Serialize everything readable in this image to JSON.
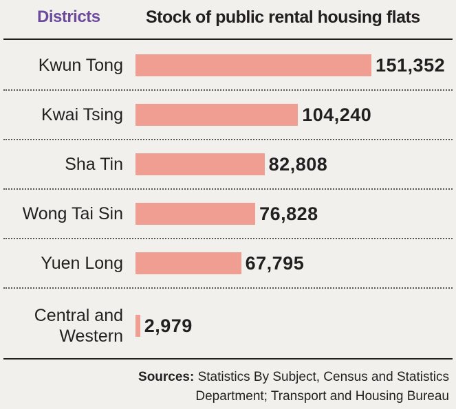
{
  "header": {
    "districts_label": "Districts",
    "stock_label": "Stock of public rental housing flats"
  },
  "chart_data": {
    "type": "bar",
    "orientation": "horizontal",
    "categories": [
      "Kwun Tong",
      "Kwai Tsing",
      "Sha Tin",
      "Wong Tai Sin",
      "Yuen Long",
      "Central and Western"
    ],
    "values": [
      151352,
      104240,
      82808,
      76828,
      67795,
      2979
    ],
    "value_labels": [
      "151,352",
      "104,240",
      "82,808",
      "76,828",
      "67,795",
      "2,979"
    ],
    "title": "Stock of public rental housing flats",
    "xlabel": "",
    "ylabel": "Districts",
    "xlim": [
      0,
      151352
    ],
    "grid": false,
    "legend": "none",
    "bar_color": "#f09e92"
  },
  "footer": {
    "sources_key": "Sources:",
    "sources_line1": "Statistics By Subject, Census and Statistics",
    "sources_line2": "Department; Transport and Housing Bureau"
  },
  "colors": {
    "background": "#f2f0ec",
    "districts_heading": "#6b4a9c",
    "bar": "#f09e92"
  }
}
